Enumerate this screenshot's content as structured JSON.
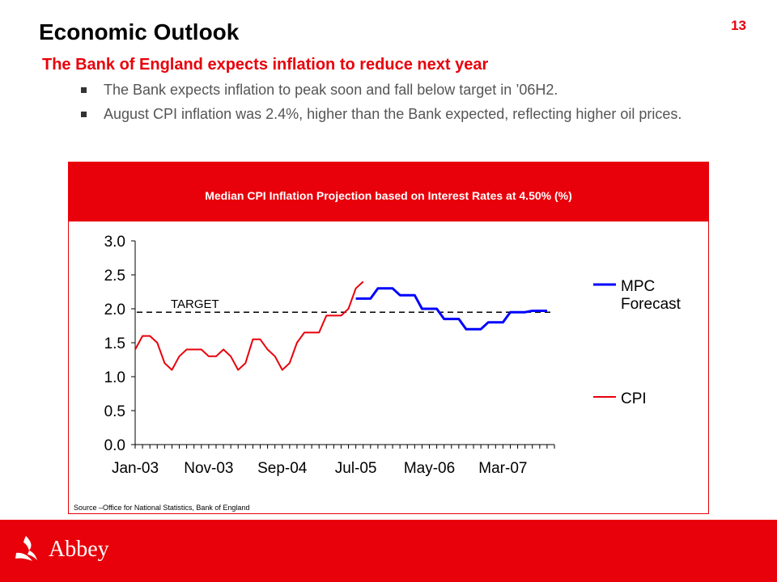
{
  "page_number": "13",
  "title": "Economic Outlook",
  "subtitle": "The Bank of England expects inflation to reduce next year",
  "bullets": [
    "The Bank expects inflation to peak soon and fall below target in ’06H2.",
    "August CPI inflation was 2.4%, higher than the Bank expected, reflecting higher oil prices."
  ],
  "chart_header": "Median CPI Inflation Projection based on Interest Rates at 4.50% (%)",
  "source": "Source –Office for National Statistics, Bank of England",
  "brand": "Abbey",
  "colors": {
    "accent": "#e8000a",
    "forecast": "#0000ff",
    "cpi": "#e8000a"
  },
  "chart_data": {
    "type": "line",
    "title": "Median CPI Inflation Projection based on Interest Rates at 4.50% (%)",
    "x_tick_labels": [
      "Jan-03",
      "Nov-03",
      "Sep-04",
      "Jul-05",
      "May-06",
      "Mar-07"
    ],
    "x_tick_positions": [
      0,
      10,
      20,
      30,
      40,
      50
    ],
    "x_range": [
      0,
      57
    ],
    "ylim": [
      0,
      3.0
    ],
    "y_ticks": [
      0.0,
      0.5,
      1.0,
      1.5,
      2.0,
      2.5,
      3.0
    ],
    "y_tick_labels": [
      "0.0",
      "0.5",
      "1.0",
      "1.5",
      "2.0",
      "2.5",
      "3.0"
    ],
    "target": {
      "label": "TARGET",
      "value": 1.95
    },
    "legend_position": "right",
    "series": [
      {
        "name": "CPI",
        "color": "#e8000a",
        "x": [
          0,
          1,
          2,
          3,
          4,
          5,
          6,
          7,
          8,
          9,
          10,
          11,
          12,
          13,
          14,
          15,
          16,
          17,
          18,
          19,
          20,
          21,
          22,
          23,
          24,
          25,
          26,
          27,
          28,
          29,
          30,
          31
        ],
        "values": [
          1.4,
          1.6,
          1.6,
          1.5,
          1.2,
          1.1,
          1.3,
          1.4,
          1.4,
          1.4,
          1.3,
          1.3,
          1.4,
          1.3,
          1.1,
          1.2,
          1.55,
          1.55,
          1.4,
          1.3,
          1.1,
          1.2,
          1.5,
          1.65,
          1.65,
          1.65,
          1.9,
          1.9,
          1.9,
          2.0,
          2.3,
          2.4
        ]
      },
      {
        "name": "MPC Forecast",
        "color": "#0000ff",
        "x": [
          30,
          31,
          32,
          33,
          34,
          35,
          36,
          37,
          38,
          39,
          40,
          41,
          42,
          43,
          44,
          45,
          46,
          47,
          48,
          49,
          50,
          51,
          52,
          53,
          54,
          55,
          56
        ],
        "values": [
          2.15,
          2.15,
          2.15,
          2.3,
          2.3,
          2.3,
          2.2,
          2.2,
          2.2,
          2.0,
          2.0,
          2.0,
          1.85,
          1.85,
          1.85,
          1.7,
          1.7,
          1.7,
          1.8,
          1.8,
          1.8,
          1.95,
          1.95,
          1.95,
          1.97,
          1.97,
          1.97
        ]
      }
    ],
    "legend": [
      "MPC Forecast",
      "CPI"
    ]
  }
}
